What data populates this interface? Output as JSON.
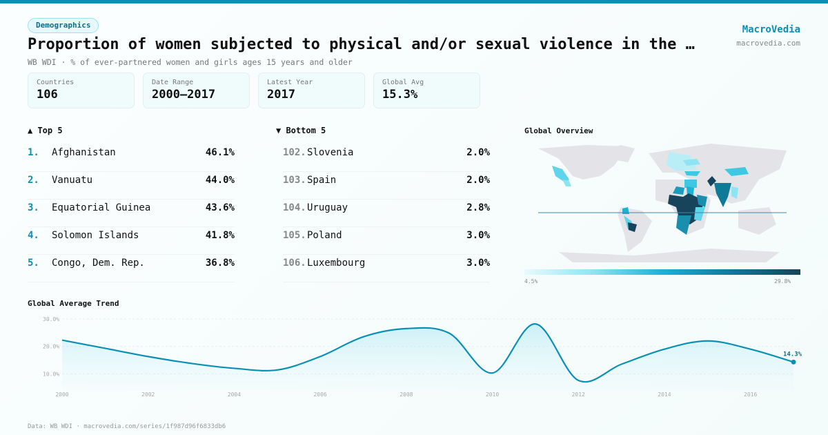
{
  "header": {
    "category": "Demographics",
    "title": "Proportion of women subjected to physical and/or sexual violence in the …",
    "subtitle": "WB WDI · % of ever-partnered women and girls ages 15 years and older",
    "brand": "MacroVedia",
    "brand_url": "macrovedia.com"
  },
  "stats": [
    {
      "label": "Countries",
      "value": "106"
    },
    {
      "label": "Date Range",
      "value": "2000–2017"
    },
    {
      "label": "Latest Year",
      "value": "2017"
    },
    {
      "label": "Global Avg",
      "value": "15.3%"
    }
  ],
  "top5": {
    "heading": "▲ Top 5",
    "items": [
      {
        "rank": "1.",
        "name": "Afghanistan",
        "value": "46.1%"
      },
      {
        "rank": "2.",
        "name": "Vanuatu",
        "value": "44.0%"
      },
      {
        "rank": "3.",
        "name": "Equatorial Guinea",
        "value": "43.6%"
      },
      {
        "rank": "4.",
        "name": "Solomon Islands",
        "value": "41.8%"
      },
      {
        "rank": "5.",
        "name": "Congo, Dem. Rep.",
        "value": "36.8%"
      }
    ]
  },
  "bottom5": {
    "heading": "▼ Bottom 5",
    "items": [
      {
        "rank": "102.",
        "name": "Slovenia",
        "value": "2.0%"
      },
      {
        "rank": "103.",
        "name": "Spain",
        "value": "2.0%"
      },
      {
        "rank": "104.",
        "name": "Uruguay",
        "value": "2.8%"
      },
      {
        "rank": "105.",
        "name": "Poland",
        "value": "3.0%"
      },
      {
        "rank": "106.",
        "name": "Luxembourg",
        "value": "3.0%"
      }
    ]
  },
  "map": {
    "heading": "Global Overview",
    "legend_min": "4.5%",
    "legend_max": "29.8%",
    "colors": {
      "low": "#e8fbfd",
      "mid": "#1ab3d1",
      "high": "#17445a",
      "nodata": "#e4e4e8"
    }
  },
  "chart_data": {
    "type": "area",
    "title": "Global Average Trend",
    "x": [
      2000,
      2001,
      2002,
      2003,
      2004,
      2005,
      2006,
      2007,
      2008,
      2009,
      2010,
      2011,
      2012,
      2013,
      2014,
      2015,
      2016,
      2017
    ],
    "values": [
      22.3,
      19.3,
      16.3,
      13.8,
      12.0,
      11.4,
      16.3,
      23.5,
      26.5,
      24.8,
      10.3,
      28.2,
      7.6,
      13.5,
      19.0,
      22.0,
      19.0,
      14.3
    ],
    "ylim": [
      5,
      31
    ],
    "yticks": [
      "30.0%",
      "20.0%",
      "10.0%"
    ],
    "xticks": [
      "2000",
      "2002",
      "2004",
      "2006",
      "2008",
      "2010",
      "2012",
      "2014",
      "2016"
    ],
    "last_label": "14.3%",
    "color": "#0a8fb5",
    "grid": true
  },
  "footer": "Data: WB WDI · macrovedia.com/series/1f987d96f6833db6"
}
